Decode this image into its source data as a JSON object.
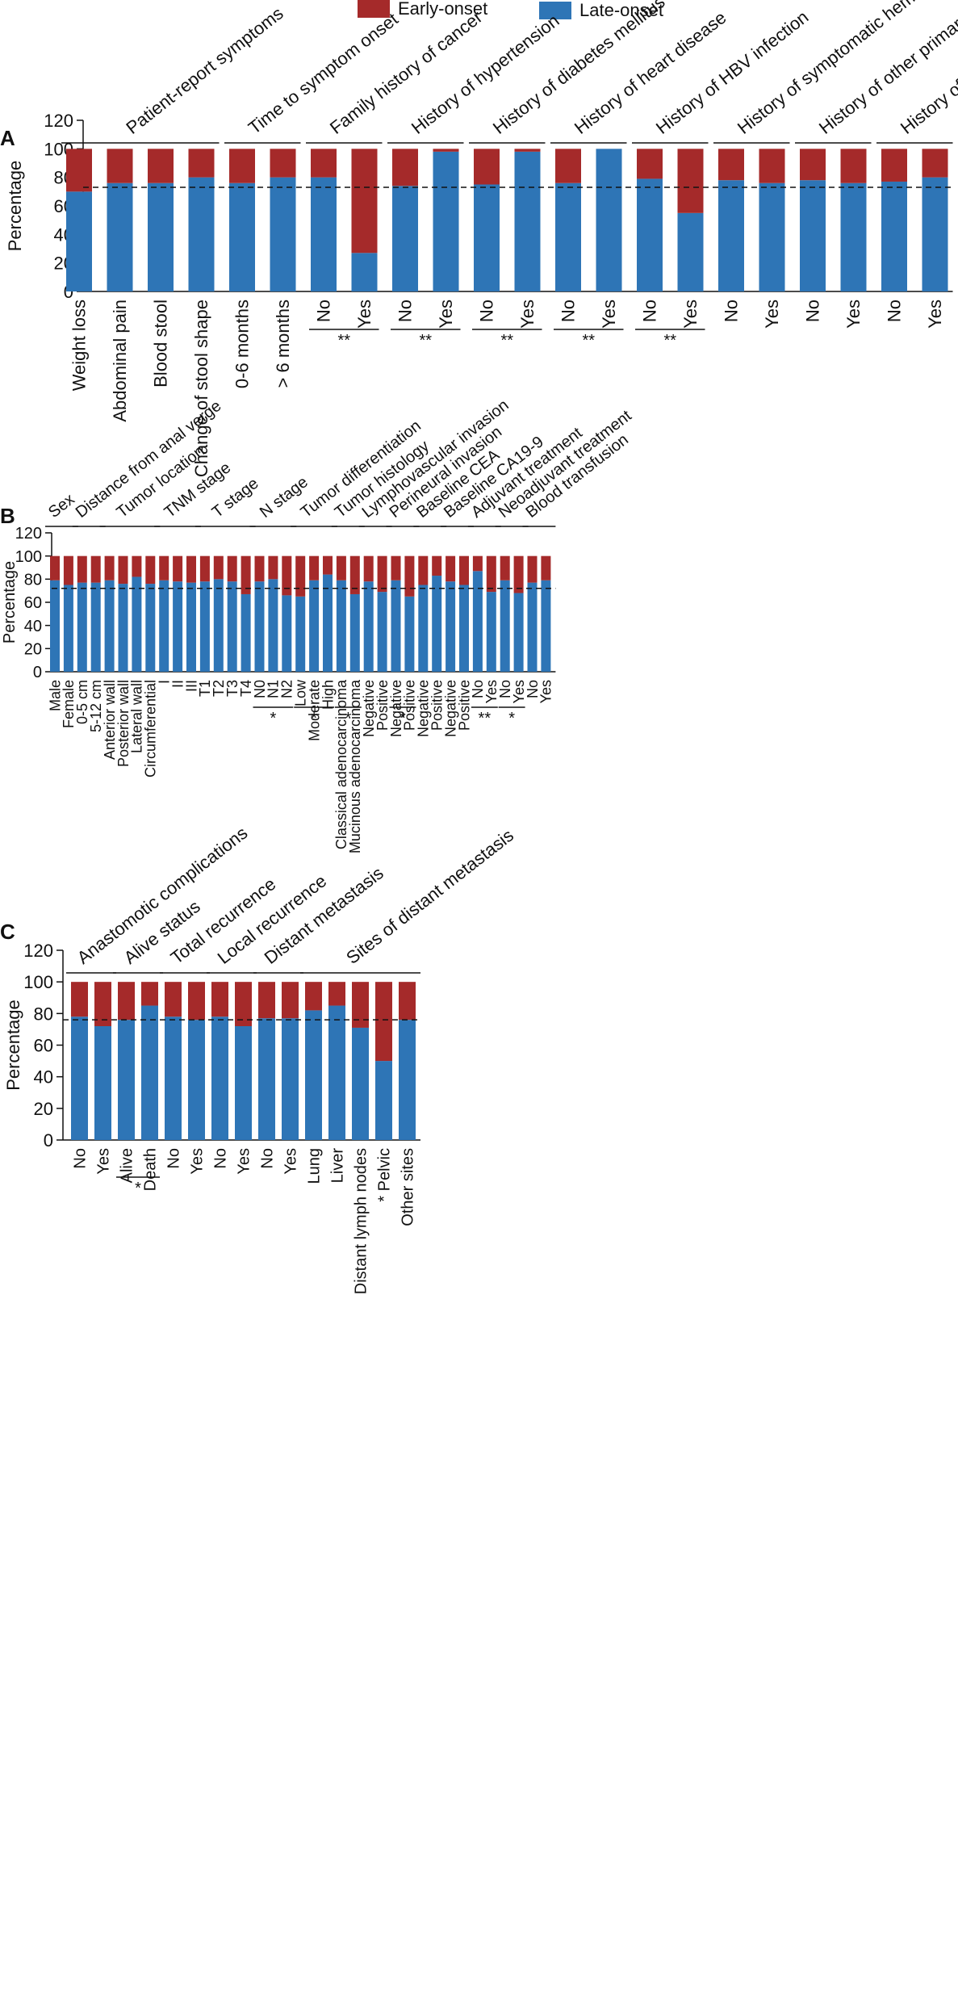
{
  "legend": {
    "items": [
      {
        "label": "Early-onset",
        "color": "#A52A2A"
      },
      {
        "label": "Late-onset",
        "color": "#2E75B6"
      }
    ],
    "placement": "top-center"
  },
  "colors": {
    "early": "#A52A2A",
    "late": "#2E75B6",
    "reference_line": "#111111"
  },
  "chart_data": [
    {
      "panel": "A",
      "type": "bar",
      "stacked": true,
      "ylabel": "Percentage",
      "ylim": [
        0,
        120
      ],
      "yticks": [
        0,
        20,
        40,
        60,
        80,
        100,
        120
      ],
      "reference_line": 73,
      "series": [
        {
          "name": "Late-onset",
          "values": [
            70,
            76,
            76,
            80,
            76,
            80,
            80,
            27,
            74,
            98,
            75,
            98,
            76,
            100,
            79,
            55,
            78,
            76,
            78,
            76,
            77,
            80
          ]
        },
        {
          "name": "Early-onset",
          "values": [
            30,
            24,
            24,
            20,
            24,
            20,
            20,
            73,
            26,
            2,
            25,
            2,
            24,
            0,
            21,
            45,
            22,
            24,
            22,
            24,
            23,
            20
          ]
        }
      ],
      "categories": [
        "Weight loss",
        "Abdominal pain",
        "Blood stool",
        "Change of stool shape",
        "0-6 months",
        "> 6 months",
        "No",
        "Yes",
        "No",
        "Yes",
        "No",
        "Yes",
        "No",
        "Yes",
        "No",
        "Yes",
        "No",
        "Yes",
        "No",
        "Yes",
        "No",
        "Yes"
      ],
      "groups": [
        {
          "label": "Patient-report symptoms",
          "from": 0,
          "to": 3
        },
        {
          "label": "Time to symptom onset",
          "from": 4,
          "to": 5
        },
        {
          "label": "Family history of cancer",
          "from": 6,
          "to": 7
        },
        {
          "label": "History of hypertension",
          "from": 8,
          "to": 9
        },
        {
          "label": "History of diabetes mellitus",
          "from": 10,
          "to": 11
        },
        {
          "label": "History of heart disease",
          "from": 12,
          "to": 13
        },
        {
          "label": "History of HBV infection",
          "from": 14,
          "to": 15
        },
        {
          "label": "History of symptomatic hemorrhoid",
          "from": 16,
          "to": 17
        },
        {
          "label": "History of other primary tumors",
          "from": 18,
          "to": 19
        },
        {
          "label": "History of intestinal adenomas",
          "from": 20,
          "to": 21
        }
      ],
      "significance": [
        {
          "from": 6,
          "to": 7,
          "label": "**"
        },
        {
          "from": 8,
          "to": 9,
          "label": "**"
        },
        {
          "from": 10,
          "to": 11,
          "label": "**"
        },
        {
          "from": 12,
          "to": 13,
          "label": "**"
        },
        {
          "from": 14,
          "to": 15,
          "label": "**"
        }
      ]
    },
    {
      "panel": "B",
      "type": "bar",
      "stacked": true,
      "ylabel": "Percentage",
      "ylim": [
        0,
        120
      ],
      "yticks": [
        0,
        20,
        40,
        60,
        80,
        100,
        120
      ],
      "reference_line": 72,
      "series": [
        {
          "name": "Late-onset",
          "values": [
            79,
            75,
            77,
            77,
            79,
            76,
            82,
            76,
            79,
            78,
            77,
            78,
            80,
            78,
            67,
            78,
            80,
            66,
            65,
            79,
            84,
            79,
            67,
            78,
            69,
            79,
            65,
            75,
            83,
            78,
            75,
            87,
            69,
            79,
            68,
            77,
            79
          ]
        },
        {
          "name": "Early-onset",
          "values": [
            21,
            25,
            23,
            23,
            21,
            24,
            18,
            24,
            21,
            22,
            23,
            22,
            20,
            22,
            33,
            22,
            20,
            34,
            35,
            21,
            16,
            21,
            33,
            22,
            31,
            21,
            35,
            25,
            17,
            22,
            25,
            13,
            31,
            21,
            32,
            23,
            21
          ]
        }
      ],
      "categories": [
        "Male",
        "Female",
        "0-5 cm",
        "5-12 cm",
        "Anterior wall",
        "Posterior wall",
        "Lateral wall",
        "Circumferential",
        "I",
        "II",
        "III",
        "T1",
        "T2",
        "T3",
        "T4",
        "N0",
        "N1",
        "N2",
        "Low",
        "Moderate",
        "High",
        "Classical adenocarcinoma",
        "Mucinous adenocarcinoma",
        "Negative",
        "Positive",
        "Negative",
        "Positive",
        "Negative",
        "Positive",
        "Negative",
        "Positive",
        "No",
        "Yes",
        "No",
        "Yes",
        "No",
        "Yes"
      ],
      "groups": [
        {
          "label": "Sex",
          "from": 0,
          "to": 1
        },
        {
          "label": "Distance from anal verge",
          "from": 2,
          "to": 3
        },
        {
          "label": "Tumor location",
          "from": 4,
          "to": 7
        },
        {
          "label": "TNM stage",
          "from": 8,
          "to": 10
        },
        {
          "label": "T stage",
          "from": 11,
          "to": 14
        },
        {
          "label": "N stage",
          "from": 15,
          "to": 17
        },
        {
          "label": "Tumor differentiation",
          "from": 18,
          "to": 20
        },
        {
          "label": "Tumor histology",
          "from": 21,
          "to": 22
        },
        {
          "label": "Lymphovascular invasion",
          "from": 23,
          "to": 24
        },
        {
          "label": "Perineural invasion",
          "from": 25,
          "to": 26
        },
        {
          "label": "Baseline CEA",
          "from": 27,
          "to": 28
        },
        {
          "label": "Baseline CA19-9",
          "from": 29,
          "to": 30
        },
        {
          "label": "Adjuvant treatment",
          "from": 31,
          "to": 32
        },
        {
          "label": "Neoadjuvant treatment",
          "from": 33,
          "to": 34
        },
        {
          "label": "Blood transfusion",
          "from": 35,
          "to": 36
        }
      ],
      "significance": [
        {
          "from": 15,
          "to": 17,
          "label": "*"
        },
        {
          "from": 18,
          "to": 20,
          "label": "*"
        },
        {
          "from": 21,
          "to": 22,
          "label": "*"
        },
        {
          "from": 25,
          "to": 26,
          "label": "*"
        },
        {
          "from": 31,
          "to": 32,
          "label": "**"
        },
        {
          "from": 33,
          "to": 34,
          "label": "*"
        }
      ]
    },
    {
      "panel": "C",
      "type": "bar",
      "stacked": true,
      "ylabel": "Percentage",
      "ylim": [
        0,
        120
      ],
      "yticks": [
        0,
        20,
        40,
        60,
        80,
        100,
        120
      ],
      "reference_line": 76,
      "series": [
        {
          "name": "Late-onset",
          "values": [
            78,
            72,
            76,
            85,
            78,
            76,
            78,
            72,
            77,
            77,
            82,
            85,
            71,
            50,
            76
          ]
        },
        {
          "name": "Early-onset",
          "values": [
            22,
            28,
            24,
            15,
            22,
            24,
            22,
            28,
            23,
            23,
            18,
            15,
            29,
            50,
            24
          ]
        }
      ],
      "categories": [
        "No",
        "Yes",
        "Alive",
        "Death",
        "No",
        "Yes",
        "No",
        "Yes",
        "No",
        "Yes",
        "Lung",
        "Liver",
        "Distant lymph nodes",
        "Pelvic",
        "Other sites"
      ],
      "groups": [
        {
          "label": "Anastomotic complications",
          "from": 0,
          "to": 1
        },
        {
          "label": "Alive status",
          "from": 2,
          "to": 3
        },
        {
          "label": "Total recurrence",
          "from": 4,
          "to": 5
        },
        {
          "label": "Local recurrence",
          "from": 6,
          "to": 7
        },
        {
          "label": "Distant metastasis",
          "from": 8,
          "to": 9
        },
        {
          "label": "Sites of distant metastasis",
          "from": 10,
          "to": 14
        }
      ],
      "significance": [
        {
          "from": 2,
          "to": 3,
          "label": "*"
        }
      ],
      "category_markers": [
        {
          "index": 13,
          "label": "*"
        }
      ]
    }
  ]
}
